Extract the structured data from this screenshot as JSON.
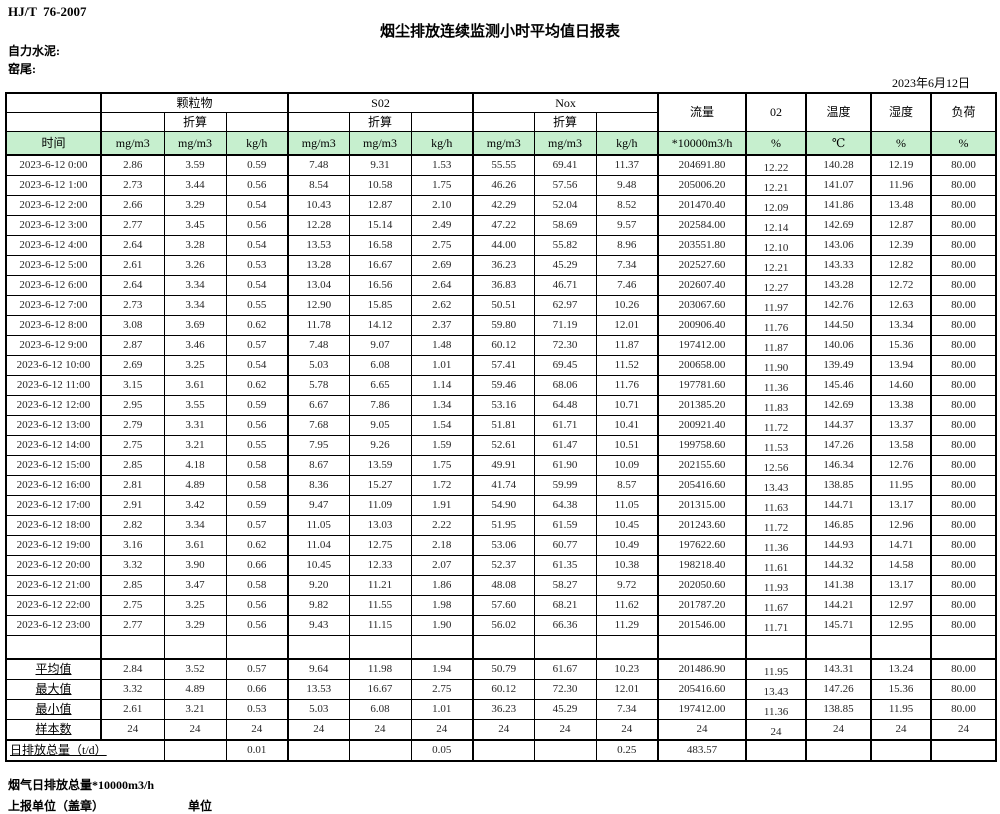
{
  "header": {
    "standard": "HJ/T  76-2007",
    "title": "烟尘排放连续监测小时平均值日报表",
    "company": "自力水泥:",
    "site": "窑尾:",
    "date": "2023年6月12日"
  },
  "table": {
    "group_row": {
      "particulate": "颗粒物",
      "so2": "S02",
      "nox": "Nox",
      "flow": "流量",
      "o2": "02",
      "temp": "温度",
      "humidity": "湿度",
      "load": "负荷"
    },
    "converted_label": "折算",
    "units": [
      "时间",
      "mg/m3",
      "mg/m3",
      "kg/h",
      "mg/m3",
      "mg/m3",
      "kg/h",
      "mg/m3",
      "mg/m3",
      "kg/h",
      "*10000m3/h",
      "%",
      "℃",
      "%",
      "%"
    ],
    "rows": [
      [
        "2023-6-12 0:00",
        "2.86",
        "3.59",
        "0.59",
        "7.48",
        "9.31",
        "1.53",
        "55.55",
        "69.41",
        "11.37",
        "204691.80",
        "12.22",
        "140.28",
        "12.19",
        "80.00"
      ],
      [
        "2023-6-12 1:00",
        "2.73",
        "3.44",
        "0.56",
        "8.54",
        "10.58",
        "1.75",
        "46.26",
        "57.56",
        "9.48",
        "205006.20",
        "12.21",
        "141.07",
        "11.96",
        "80.00"
      ],
      [
        "2023-6-12 2:00",
        "2.66",
        "3.29",
        "0.54",
        "10.43",
        "12.87",
        "2.10",
        "42.29",
        "52.04",
        "8.52",
        "201470.40",
        "12.09",
        "141.86",
        "13.48",
        "80.00"
      ],
      [
        "2023-6-12 3:00",
        "2.77",
        "3.45",
        "0.56",
        "12.28",
        "15.14",
        "2.49",
        "47.22",
        "58.69",
        "9.57",
        "202584.00",
        "12.14",
        "142.69",
        "12.87",
        "80.00"
      ],
      [
        "2023-6-12 4:00",
        "2.64",
        "3.28",
        "0.54",
        "13.53",
        "16.58",
        "2.75",
        "44.00",
        "55.82",
        "8.96",
        "203551.80",
        "12.10",
        "143.06",
        "12.39",
        "80.00"
      ],
      [
        "2023-6-12 5:00",
        "2.61",
        "3.26",
        "0.53",
        "13.28",
        "16.67",
        "2.69",
        "36.23",
        "45.29",
        "7.34",
        "202527.60",
        "12.21",
        "143.33",
        "12.82",
        "80.00"
      ],
      [
        "2023-6-12 6:00",
        "2.64",
        "3.34",
        "0.54",
        "13.04",
        "16.56",
        "2.64",
        "36.83",
        "46.71",
        "7.46",
        "202607.40",
        "12.27",
        "143.28",
        "12.72",
        "80.00"
      ],
      [
        "2023-6-12 7:00",
        "2.73",
        "3.34",
        "0.55",
        "12.90",
        "15.85",
        "2.62",
        "50.51",
        "62.97",
        "10.26",
        "203067.60",
        "11.97",
        "142.76",
        "12.63",
        "80.00"
      ],
      [
        "2023-6-12 8:00",
        "3.08",
        "3.69",
        "0.62",
        "11.78",
        "14.12",
        "2.37",
        "59.80",
        "71.19",
        "12.01",
        "200906.40",
        "11.76",
        "144.50",
        "13.34",
        "80.00"
      ],
      [
        "2023-6-12 9:00",
        "2.87",
        "3.46",
        "0.57",
        "7.48",
        "9.07",
        "1.48",
        "60.12",
        "72.30",
        "11.87",
        "197412.00",
        "11.87",
        "140.06",
        "15.36",
        "80.00"
      ],
      [
        "2023-6-12 10:00",
        "2.69",
        "3.25",
        "0.54",
        "5.03",
        "6.08",
        "1.01",
        "57.41",
        "69.45",
        "11.52",
        "200658.00",
        "11.90",
        "139.49",
        "13.94",
        "80.00"
      ],
      [
        "2023-6-12 11:00",
        "3.15",
        "3.61",
        "0.62",
        "5.78",
        "6.65",
        "1.14",
        "59.46",
        "68.06",
        "11.76",
        "197781.60",
        "11.36",
        "145.46",
        "14.60",
        "80.00"
      ],
      [
        "2023-6-12 12:00",
        "2.95",
        "3.55",
        "0.59",
        "6.67",
        "7.86",
        "1.34",
        "53.16",
        "64.48",
        "10.71",
        "201385.20",
        "11.83",
        "142.69",
        "13.38",
        "80.00"
      ],
      [
        "2023-6-12 13:00",
        "2.79",
        "3.31",
        "0.56",
        "7.68",
        "9.05",
        "1.54",
        "51.81",
        "61.71",
        "10.41",
        "200921.40",
        "11.72",
        "144.37",
        "13.37",
        "80.00"
      ],
      [
        "2023-6-12 14:00",
        "2.75",
        "3.21",
        "0.55",
        "7.95",
        "9.26",
        "1.59",
        "52.61",
        "61.47",
        "10.51",
        "199758.60",
        "11.53",
        "147.26",
        "13.58",
        "80.00"
      ],
      [
        "2023-6-12 15:00",
        "2.85",
        "4.18",
        "0.58",
        "8.67",
        "13.59",
        "1.75",
        "49.91",
        "61.90",
        "10.09",
        "202155.60",
        "12.56",
        "146.34",
        "12.76",
        "80.00"
      ],
      [
        "2023-6-12 16:00",
        "2.81",
        "4.89",
        "0.58",
        "8.36",
        "15.27",
        "1.72",
        "41.74",
        "59.99",
        "8.57",
        "205416.60",
        "13.43",
        "138.85",
        "11.95",
        "80.00"
      ],
      [
        "2023-6-12 17:00",
        "2.91",
        "3.42",
        "0.59",
        "9.47",
        "11.09",
        "1.91",
        "54.90",
        "64.38",
        "11.05",
        "201315.00",
        "11.63",
        "144.71",
        "13.17",
        "80.00"
      ],
      [
        "2023-6-12 18:00",
        "2.82",
        "3.34",
        "0.57",
        "11.05",
        "13.03",
        "2.22",
        "51.95",
        "61.59",
        "10.45",
        "201243.60",
        "11.72",
        "146.85",
        "12.96",
        "80.00"
      ],
      [
        "2023-6-12 19:00",
        "3.16",
        "3.61",
        "0.62",
        "11.04",
        "12.75",
        "2.18",
        "53.06",
        "60.77",
        "10.49",
        "197622.60",
        "11.36",
        "144.93",
        "14.71",
        "80.00"
      ],
      [
        "2023-6-12 20:00",
        "3.32",
        "3.90",
        "0.66",
        "10.45",
        "12.33",
        "2.07",
        "52.37",
        "61.35",
        "10.38",
        "198218.40",
        "11.61",
        "144.32",
        "14.58",
        "80.00"
      ],
      [
        "2023-6-12 21:00",
        "2.85",
        "3.47",
        "0.58",
        "9.20",
        "11.21",
        "1.86",
        "48.08",
        "58.27",
        "9.72",
        "202050.60",
        "11.93",
        "141.38",
        "13.17",
        "80.00"
      ],
      [
        "2023-6-12 22:00",
        "2.75",
        "3.25",
        "0.56",
        "9.82",
        "11.55",
        "1.98",
        "57.60",
        "68.21",
        "11.62",
        "201787.20",
        "11.67",
        "144.21",
        "12.97",
        "80.00"
      ],
      [
        "2023-6-12 23:00",
        "2.77",
        "3.29",
        "0.56",
        "9.43",
        "11.15",
        "1.90",
        "56.02",
        "66.36",
        "11.29",
        "201546.00",
        "11.71",
        "145.71",
        "12.95",
        "80.00"
      ]
    ],
    "summary_rows": [
      {
        "label": "平均值",
        "values": [
          "2.84",
          "3.52",
          "0.57",
          "9.64",
          "11.98",
          "1.94",
          "50.79",
          "61.67",
          "10.23",
          "201486.90",
          "11.95",
          "143.31",
          "13.24",
          "80.00"
        ]
      },
      {
        "label": "最大值",
        "values": [
          "3.32",
          "4.89",
          "0.66",
          "13.53",
          "16.67",
          "2.75",
          "60.12",
          "72.30",
          "12.01",
          "205416.60",
          "13.43",
          "147.26",
          "15.36",
          "80.00"
        ]
      },
      {
        "label": "最小值",
        "values": [
          "2.61",
          "3.21",
          "0.53",
          "5.03",
          "6.08",
          "1.01",
          "36.23",
          "45.29",
          "7.34",
          "197412.00",
          "11.36",
          "138.85",
          "11.95",
          "80.00"
        ]
      },
      {
        "label": "样本数",
        "values": [
          "24",
          "24",
          "24",
          "24",
          "24",
          "24",
          "24",
          "24",
          "24",
          "24",
          "24",
          "24",
          "24",
          "24"
        ]
      }
    ],
    "daily_total_row": {
      "label": "日排放总量（t/d）",
      "values": [
        "",
        "0.01",
        "",
        "",
        "0.05",
        "",
        "",
        "0.25",
        "483.57",
        "",
        "",
        "",
        ""
      ]
    }
  },
  "footer": {
    "line1": "烟气日排放总量*10000m3/h",
    "report_unit_label": "上报单位（盖章）",
    "unit_label": "单位"
  }
}
